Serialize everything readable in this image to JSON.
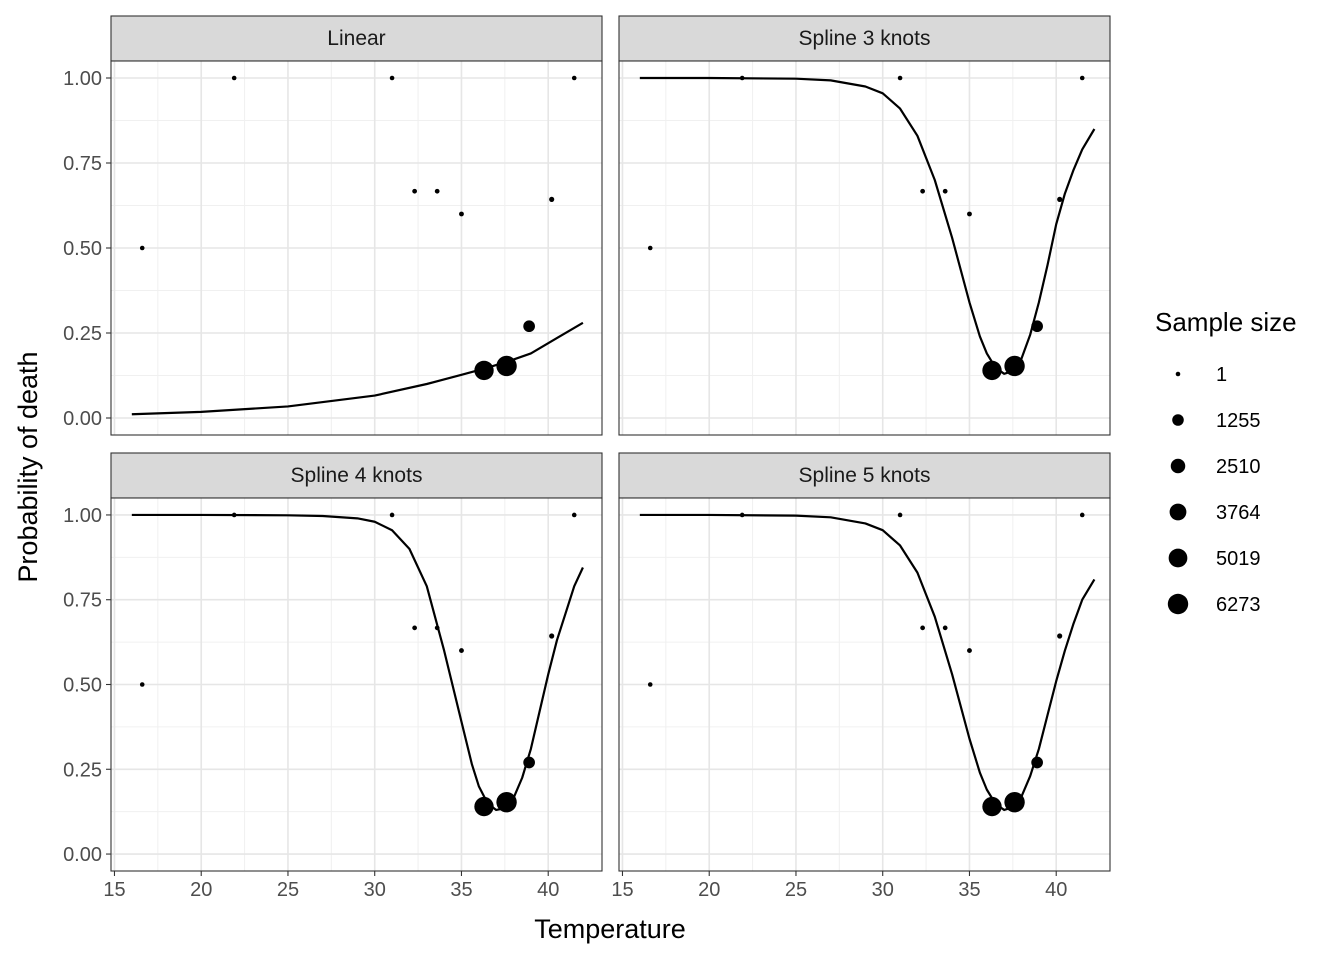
{
  "chart_data": {
    "type": "scatter",
    "xlabel": "Temperature",
    "ylabel": "Probability of death",
    "xlim": [
      14.8,
      43.1
    ],
    "ylim": [
      -0.05,
      1.05
    ],
    "x_ticks": [
      15,
      20,
      25,
      30,
      35,
      40
    ],
    "x_tick_labels": [
      "15",
      "20",
      "25",
      "30",
      "35",
      "40"
    ],
    "y_ticks": [
      0,
      0.25,
      0.5,
      0.75,
      1
    ],
    "y_tick_labels": [
      "0.00",
      "0.25",
      "0.50",
      "0.75",
      "1.00"
    ],
    "grid": true,
    "legend": {
      "title": "Sample size",
      "position": "right",
      "entries": [
        {
          "label": "1",
          "size": 1
        },
        {
          "label": "1255",
          "size": 1255
        },
        {
          "label": "2510",
          "size": 2510
        },
        {
          "label": "3764",
          "size": 3764
        },
        {
          "label": "5019",
          "size": 5019
        },
        {
          "label": "6273",
          "size": 6273
        }
      ]
    },
    "points": [
      {
        "x": 16.6,
        "y": 0.5,
        "n": 1
      },
      {
        "x": 21.9,
        "y": 1.0,
        "n": 1
      },
      {
        "x": 31.0,
        "y": 1.0,
        "n": 1
      },
      {
        "x": 32.3,
        "y": 0.667,
        "n": 3
      },
      {
        "x": 33.6,
        "y": 0.667,
        "n": 3
      },
      {
        "x": 35.0,
        "y": 0.6,
        "n": 5
      },
      {
        "x": 36.3,
        "y": 0.14,
        "n": 5500
      },
      {
        "x": 37.6,
        "y": 0.153,
        "n": 6273
      },
      {
        "x": 38.9,
        "y": 0.27,
        "n": 1300
      },
      {
        "x": 40.2,
        "y": 0.643,
        "n": 14
      },
      {
        "x": 41.5,
        "y": 1.0,
        "n": 1
      }
    ],
    "panels": [
      {
        "title": "Linear",
        "curve": {
          "x": [
            16,
            20,
            25,
            30,
            33,
            35,
            36.3,
            37.6,
            39,
            40.5,
            42
          ],
          "y": [
            0.011,
            0.018,
            0.034,
            0.066,
            0.1,
            0.127,
            0.145,
            0.165,
            0.19,
            0.235,
            0.28
          ]
        }
      },
      {
        "title": "Spline 3 knots",
        "curve": {
          "x": [
            16,
            20,
            25,
            27,
            29,
            30,
            31,
            32,
            33,
            34,
            35,
            35.6,
            36,
            36.5,
            37,
            37.5,
            38,
            38.5,
            39,
            39.5,
            40,
            40.5,
            41,
            41.5,
            42.2
          ],
          "y": [
            1.0,
            1.0,
            0.998,
            0.993,
            0.975,
            0.955,
            0.91,
            0.83,
            0.7,
            0.53,
            0.34,
            0.24,
            0.19,
            0.148,
            0.13,
            0.138,
            0.175,
            0.245,
            0.34,
            0.45,
            0.57,
            0.66,
            0.73,
            0.79,
            0.85
          ]
        }
      },
      {
        "title": "Spline 4 knots",
        "curve": {
          "x": [
            16,
            20,
            25,
            27,
            29,
            30,
            31,
            32,
            33,
            34,
            35,
            35.6,
            36,
            36.5,
            37,
            37.5,
            38,
            38.5,
            39,
            39.5,
            40,
            40.5,
            41,
            41.5,
            42
          ],
          "y": [
            1.0,
            1.0,
            0.999,
            0.997,
            0.99,
            0.98,
            0.955,
            0.9,
            0.79,
            0.6,
            0.39,
            0.265,
            0.2,
            0.15,
            0.13,
            0.135,
            0.165,
            0.225,
            0.31,
            0.42,
            0.53,
            0.63,
            0.71,
            0.79,
            0.845
          ]
        }
      },
      {
        "title": "Spline 5 knots",
        "curve": {
          "x": [
            16,
            20,
            25,
            27,
            29,
            30,
            31,
            32,
            33,
            34,
            35,
            35.6,
            36,
            36.5,
            37,
            37.5,
            38,
            38.5,
            39,
            39.5,
            40,
            40.5,
            41,
            41.5,
            42.2
          ],
          "y": [
            1.0,
            1.0,
            0.998,
            0.993,
            0.975,
            0.955,
            0.91,
            0.83,
            0.7,
            0.53,
            0.34,
            0.24,
            0.19,
            0.148,
            0.13,
            0.138,
            0.17,
            0.23,
            0.31,
            0.41,
            0.51,
            0.6,
            0.68,
            0.75,
            0.81
          ]
        }
      }
    ]
  }
}
